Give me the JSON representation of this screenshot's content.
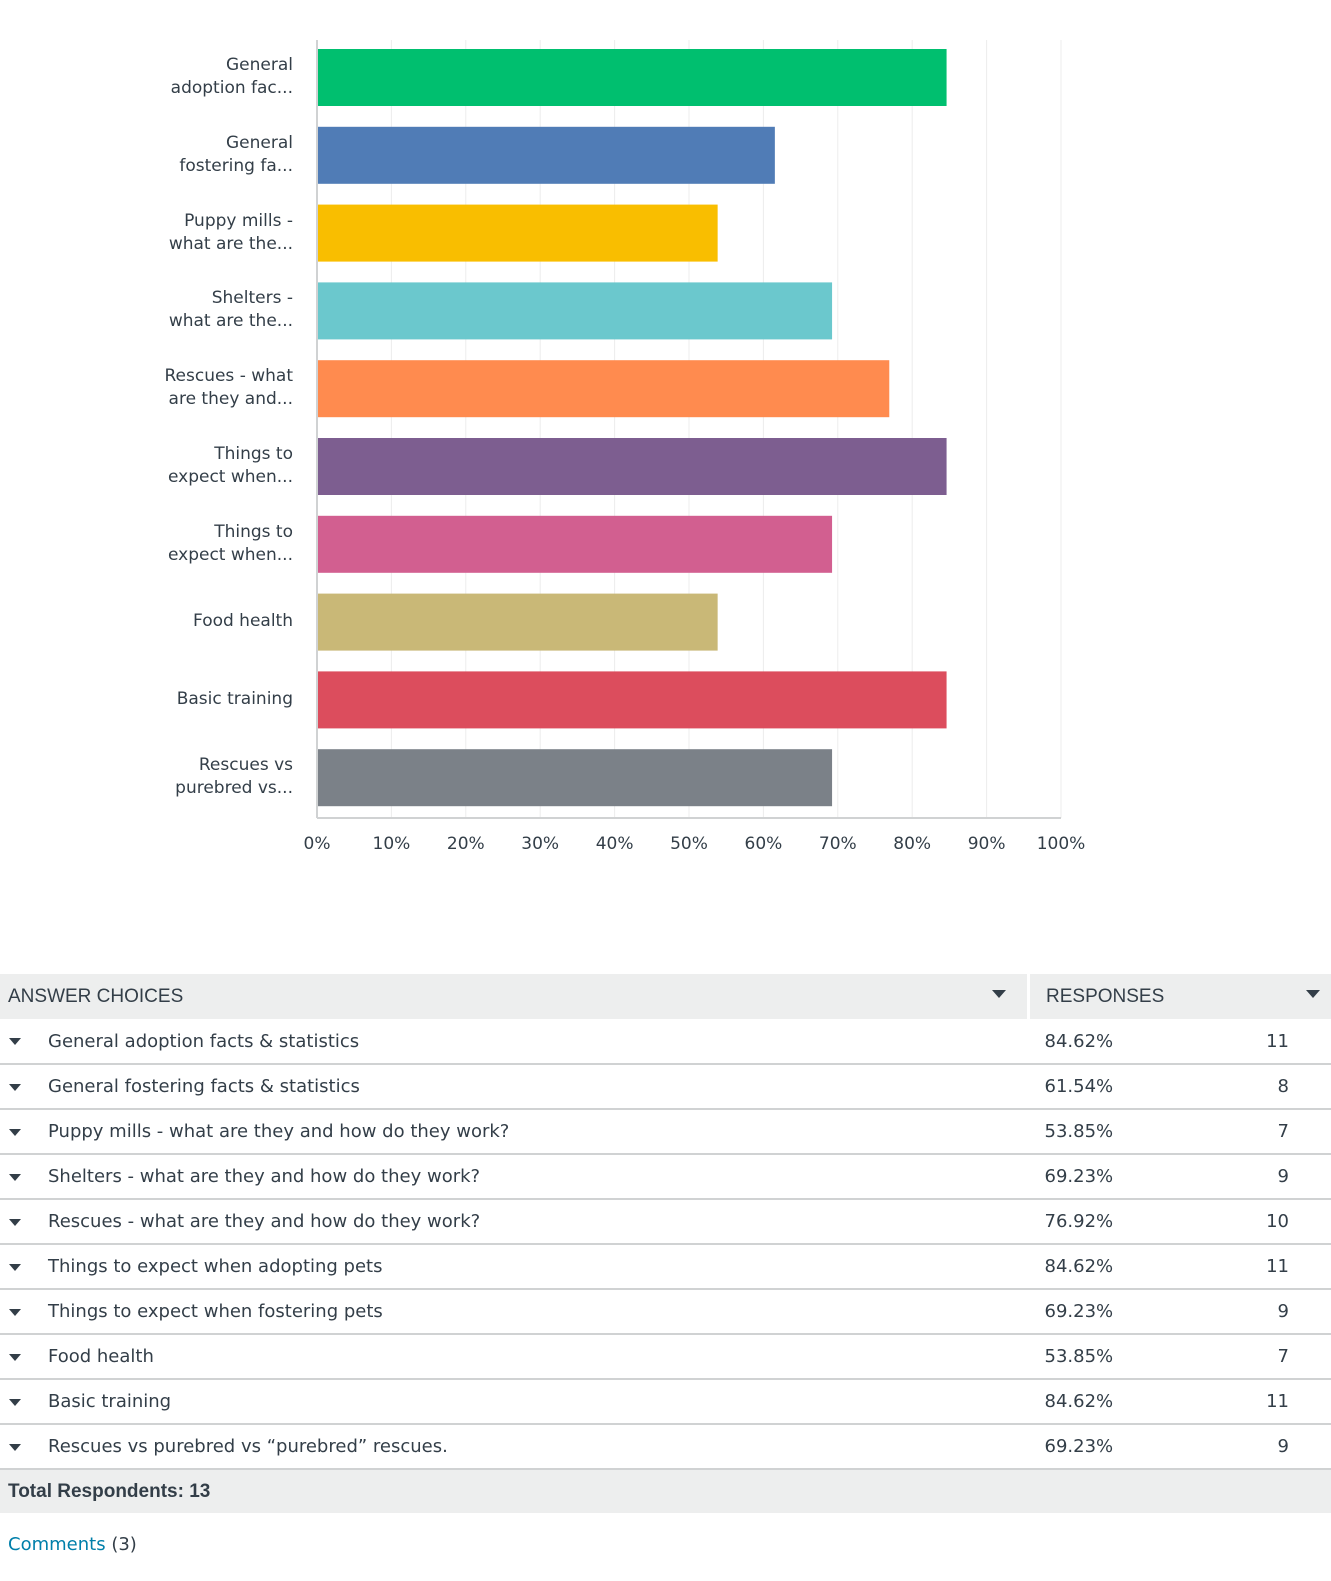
{
  "chart_data": {
    "type": "bar",
    "orientation": "horizontal",
    "categories": [
      [
        "General",
        "adoption fac..."
      ],
      [
        "General",
        "fostering fa..."
      ],
      [
        "Puppy mills -",
        "what are the..."
      ],
      [
        "Shelters -",
        "what are the..."
      ],
      [
        "Rescues - what",
        "are they and..."
      ],
      [
        "Things to",
        "expect when..."
      ],
      [
        "Things to",
        "expect when..."
      ],
      [
        "Food health"
      ],
      [
        "Basic training"
      ],
      [
        "Rescues vs",
        "purebred vs..."
      ]
    ],
    "values": [
      84.62,
      61.54,
      53.85,
      69.23,
      76.92,
      84.62,
      69.23,
      53.85,
      84.62,
      69.23
    ],
    "colors": [
      "#00bf6f",
      "#507cb6",
      "#f9be00",
      "#6bc8cd",
      "#ff8b4f",
      "#7d5e90",
      "#d25f90",
      "#c9b877",
      "#dc4d5d",
      "#7b8188"
    ],
    "xlim": [
      0,
      100
    ],
    "xticks": [
      "0%",
      "10%",
      "20%",
      "30%",
      "40%",
      "50%",
      "60%",
      "70%",
      "80%",
      "90%",
      "100%"
    ],
    "title": "",
    "xlabel": "",
    "ylabel": "",
    "grid": true
  },
  "table": {
    "header_choices": "ANSWER CHOICES",
    "header_responses": "RESPONSES",
    "rows": [
      {
        "choice": "General adoption facts & statistics",
        "percent": "84.62%",
        "count": "11"
      },
      {
        "choice": "General fostering facts & statistics",
        "percent": "61.54%",
        "count": "8"
      },
      {
        "choice": "Puppy mills - what are they and how do they work?",
        "percent": "53.85%",
        "count": "7"
      },
      {
        "choice": "Shelters - what are they and how do they work?",
        "percent": "69.23%",
        "count": "9"
      },
      {
        "choice": "Rescues - what are they and how do they work?",
        "percent": "76.92%",
        "count": "10"
      },
      {
        "choice": "Things to expect when adopting pets",
        "percent": "84.62%",
        "count": "11"
      },
      {
        "choice": "Things to expect when fostering pets",
        "percent": "69.23%",
        "count": "9"
      },
      {
        "choice": "Food health",
        "percent": "53.85%",
        "count": "7"
      },
      {
        "choice": "Basic training",
        "percent": "84.62%",
        "count": "11"
      },
      {
        "choice": "Rescues vs purebred vs “purebred” rescues.",
        "percent": "69.23%",
        "count": "9"
      }
    ],
    "total": "Total Respondents: 13"
  },
  "comments": {
    "link": "Comments",
    "count": "(3)"
  }
}
